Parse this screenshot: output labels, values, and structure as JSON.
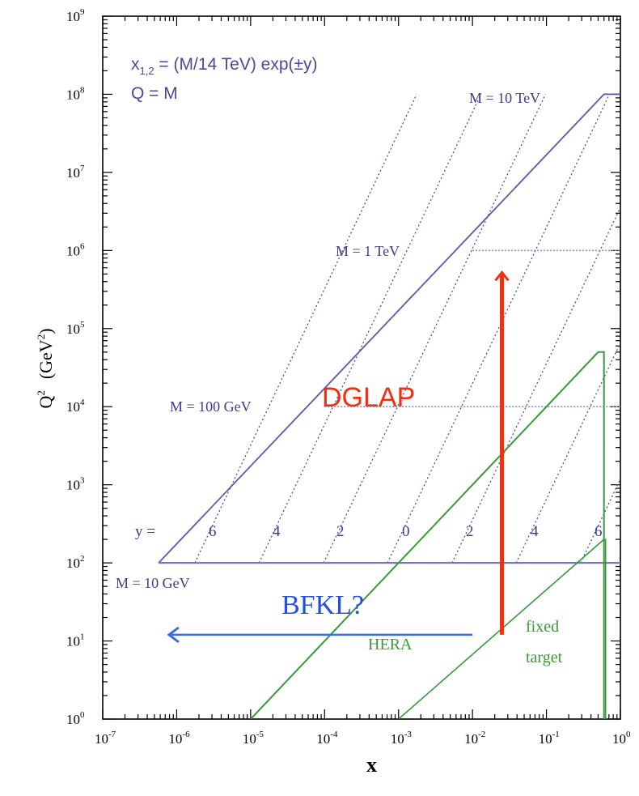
{
  "chart_data": {
    "type": "line",
    "xlabel": "x",
    "ylabel_main": "Q",
    "ylabel_sup": "2",
    "ylabel_unit": "(GeV",
    "ylabel_unit_sup": "2",
    "ylabel_unit_close": ")",
    "x_scale": "log",
    "y_scale": "log",
    "xlim": [
      1e-07,
      1
    ],
    "ylim": [
      1,
      1000000000.0
    ],
    "x_ticks": [
      {
        "exp": "-7"
      },
      {
        "exp": "-6"
      },
      {
        "exp": "-5"
      },
      {
        "exp": "-4"
      },
      {
        "exp": "-3"
      },
      {
        "exp": "-2"
      },
      {
        "exp": "-1"
      },
      {
        "exp": "0"
      }
    ],
    "y_ticks": [
      {
        "exp": "0"
      },
      {
        "exp": "1"
      },
      {
        "exp": "2"
      },
      {
        "exp": "3"
      },
      {
        "exp": "4"
      },
      {
        "exp": "5"
      },
      {
        "exp": "6"
      },
      {
        "exp": "7"
      },
      {
        "exp": "8"
      },
      {
        "exp": "9"
      }
    ],
    "tick_base": "10",
    "formula": {
      "line1_pre": "x",
      "line1_sub": "1,2",
      "line1_post": " = (M/14 TeV) exp(±y)",
      "line2": "Q = M"
    },
    "lhc_boundary": [
      [
        5.7e-07,
        100
      ],
      [
        0.6,
        100000000.0
      ],
      [
        1,
        100000000.0
      ]
    ],
    "lhc_floor": [
      [
        5.7e-07,
        100
      ],
      [
        1,
        100
      ]
    ],
    "mass_lines": [
      {
        "label": "M = 10 GeV",
        "Q2": 100,
        "x_from": 5.7e-07,
        "x_to": 1
      },
      {
        "label": "M = 100 GeV",
        "Q2": 10000.0,
        "x_from": 0.0001,
        "x_to": 1
      },
      {
        "label": "M = 1 TeV",
        "Q2": 1000000.0,
        "x_from": 0.01,
        "x_to": 1
      },
      {
        "label": "M = 10 TeV",
        "Q2": 100000000.0,
        "x_from": 0.6,
        "x_to": 1
      }
    ],
    "rapidity_lines": [
      {
        "y": 6,
        "x_at_Q2_100": 1.76e-06
      },
      {
        "y": 4,
        "x_at_Q2_100": 1.3e-05
      },
      {
        "y": 2,
        "x_at_Q2_100": 9.7e-05
      },
      {
        "y": 0,
        "x_at_Q2_100": 0.00071
      },
      {
        "y": -2,
        "x_at_Q2_100": 0.0053
      },
      {
        "y": -4,
        "x_at_Q2_100": 0.039
      },
      {
        "y": -6,
        "x_at_Q2_100": 0.29
      }
    ],
    "y_label": "y =",
    "y_values_labels": [
      "6",
      "4",
      "2",
      "0",
      "2",
      "4",
      "6"
    ],
    "hera_region": {
      "label": "HERA",
      "line": [
        [
          1e-05,
          1
        ],
        [
          0.5,
          50000.0
        ]
      ],
      "top_edge": [
        [
          0.5,
          50000.0
        ],
        [
          0.6,
          50000.0
        ]
      ],
      "right_edge": [
        [
          0.6,
          50000.0
        ],
        [
          0.6,
          1
        ]
      ]
    },
    "fixed_target_region": {
      "label_line1": "fixed",
      "label_line2": "target",
      "line": [
        [
          0.001,
          1
        ],
        [
          0.6,
          200
        ]
      ],
      "edge": [
        [
          0.6,
          200
        ],
        [
          0.63,
          200
        ],
        [
          0.63,
          1
        ]
      ]
    },
    "annotations": {
      "dglap": {
        "label": "DGLAP",
        "x": 0.025,
        "q2_from": 12,
        "q2_to": 500000.0
      },
      "bfkl": {
        "label": "BFKL?",
        "x_from": 0.01,
        "x_to": 5e-07,
        "q2": 12
      }
    },
    "colors": {
      "lhc": "#5a5aa6",
      "dotted": "#4c4c9a",
      "hera": "#3a9a3a",
      "dglap": "#f03010",
      "bfkl": "#3b6fe0",
      "axis": "#000000"
    }
  }
}
